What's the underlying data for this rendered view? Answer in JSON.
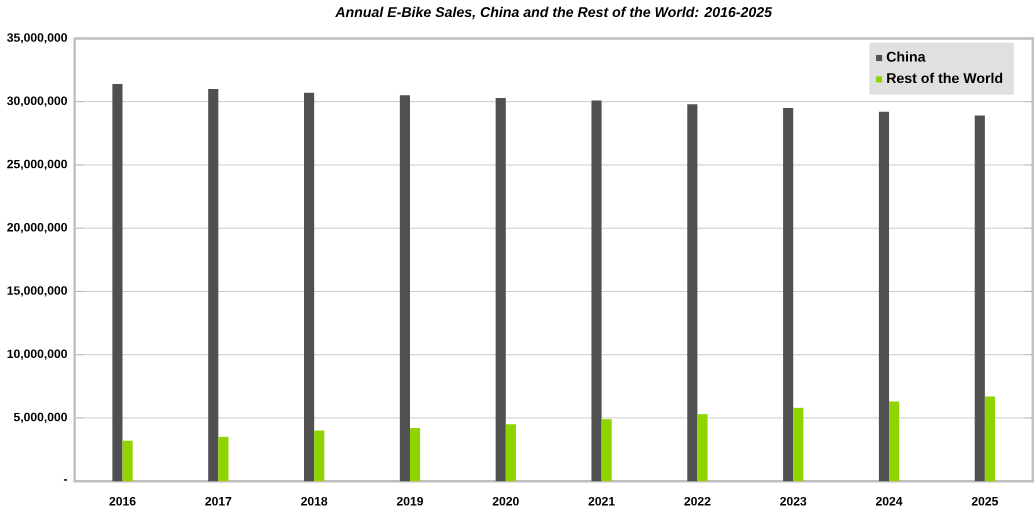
{
  "chart_data": {
    "type": "bar",
    "title": "Annual E-Bike Sales, China and the Rest of the World: 2016-2025",
    "categories": [
      "2016",
      "2017",
      "2018",
      "2019",
      "2020",
      "2021",
      "2022",
      "2023",
      "2024",
      "2025"
    ],
    "series": [
      {
        "name": "China",
        "color": "#505050",
        "values": [
          31400000,
          31000000,
          30700000,
          30500000,
          30300000,
          30100000,
          29800000,
          29500000,
          29200000,
          28900000
        ]
      },
      {
        "name": "Rest of the World",
        "color": "#8fd400",
        "values": [
          3200000,
          3500000,
          4000000,
          4200000,
          4500000,
          4900000,
          5300000,
          5800000,
          6300000,
          6700000
        ]
      }
    ],
    "ylim": [
      0,
      35000000
    ],
    "yticks": [
      {
        "value": 0,
        "label": "-"
      },
      {
        "value": 5000000,
        "label": "5,000,000"
      },
      {
        "value": 10000000,
        "label": "10,000,000"
      },
      {
        "value": 15000000,
        "label": "15,000,000"
      },
      {
        "value": 20000000,
        "label": "20,000,000"
      },
      {
        "value": 25000000,
        "label": "25,000,000"
      },
      {
        "value": 30000000,
        "label": "30,000,000"
      },
      {
        "value": 35000000,
        "label": "35,000,000"
      }
    ],
    "grid": "y",
    "legend": "top right"
  }
}
